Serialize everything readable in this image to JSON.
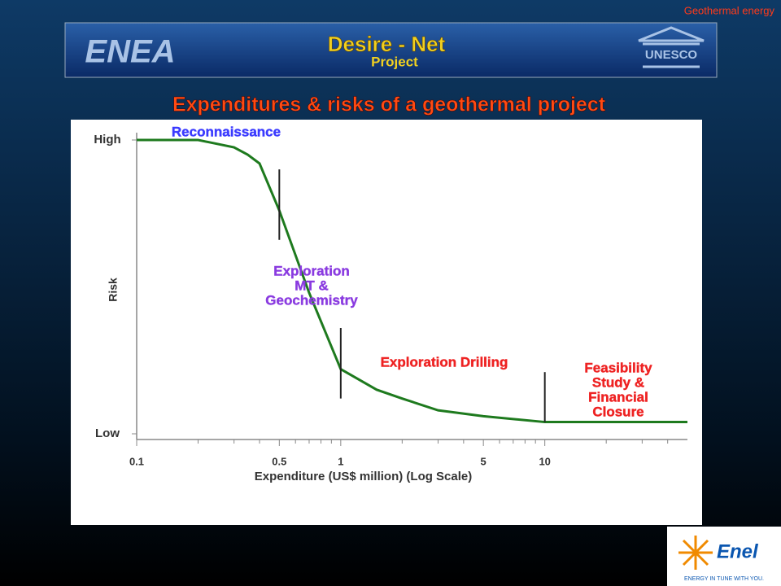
{
  "slide": {
    "corner_label": "Geothermal energy",
    "banner": {
      "left_logo": "ENEA",
      "title": "Desire - Net",
      "subtitle": "Project",
      "right_logo": "UNESCO"
    },
    "title": "Expenditures & risks of a geothermal project",
    "footer_logo": {
      "name": "Enel",
      "tagline": "ENERGY IN TUNE WITH YOU."
    }
  },
  "chart_data": {
    "type": "line",
    "x_label": "Expenditure (US$ million) (Log Scale)",
    "y_label": "Risk",
    "x_log": true,
    "xlim": [
      0.1,
      50
    ],
    "xticks": [
      0.1,
      0.5,
      1,
      5,
      10
    ],
    "xminorticks": [
      0.2,
      0.3,
      0.4,
      0.6,
      0.7,
      0.8,
      0.9,
      2,
      3,
      4,
      6,
      7,
      8,
      9,
      20,
      30,
      40
    ],
    "ylim": [
      0,
      1
    ],
    "yticks": [
      {
        "value": 0,
        "label": "Low"
      },
      {
        "value": 1,
        "label": "High"
      }
    ],
    "series": [
      {
        "name": "Risk",
        "color": "#1e7a1e",
        "x": [
          0.1,
          0.2,
          0.3,
          0.35,
          0.4,
          0.5,
          0.7,
          1,
          1.5,
          2,
          3,
          5,
          10,
          50
        ],
        "values": [
          1,
          1,
          0.975,
          0.95,
          0.92,
          0.76,
          0.48,
          0.22,
          0.15,
          0.12,
          0.08,
          0.06,
          0.04,
          0.04
        ]
      }
    ],
    "markers": [
      {
        "x": 0.5,
        "range": [
          0.66,
          0.9
        ]
      },
      {
        "x": 1,
        "range": [
          0.12,
          0.36
        ]
      },
      {
        "x": 10,
        "range": [
          0.04,
          0.21
        ]
      }
    ],
    "annotations": [
      {
        "lines": [
          "Reconnaissance"
        ],
        "color": "#3b3bff"
      },
      {
        "lines": [
          "Exploration",
          "MT &",
          "Geochemistry"
        ],
        "color": "#8a3be0"
      },
      {
        "lines": [
          "Exploration Drilling"
        ],
        "color": "#ee2222"
      },
      {
        "lines": [
          "Feasibility",
          "Study &",
          "Financial",
          "Closure"
        ],
        "color": "#ee2222"
      }
    ]
  }
}
